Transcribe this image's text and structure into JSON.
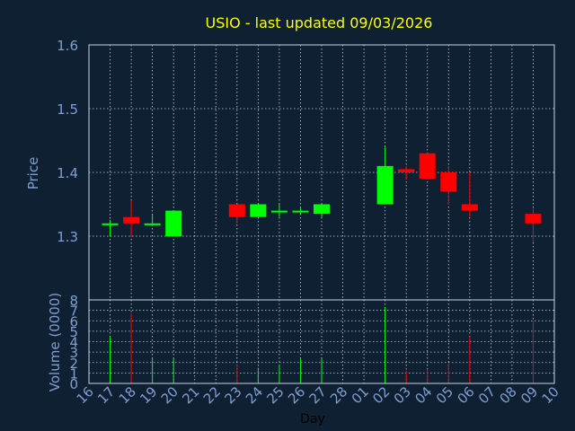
{
  "chart_data": [
    {
      "type": "candlestick",
      "title": "USIO - last updated 09/03/2026",
      "ylabel": "Price",
      "xlabel": "",
      "ylim": [
        1.2,
        1.6
      ],
      "y_ticks": [
        "1.3",
        "1.4",
        "1.5",
        "1.6"
      ],
      "grid": true,
      "candles": [
        {
          "day": "17",
          "open": 1.32,
          "high": 1.325,
          "low": 1.3,
          "close": 1.32
        },
        {
          "day": "18",
          "open": 1.33,
          "high": 1.355,
          "low": 1.3,
          "close": 1.32
        },
        {
          "day": "19",
          "open": 1.32,
          "high": 1.335,
          "low": 1.32,
          "close": 1.32
        },
        {
          "day": "20",
          "open": 1.3,
          "high": 1.34,
          "low": 1.3,
          "close": 1.34
        },
        {
          "day": "23",
          "open": 1.35,
          "high": 1.35,
          "low": 1.32,
          "close": 1.33
        },
        {
          "day": "24",
          "open": 1.33,
          "high": 1.35,
          "low": 1.33,
          "close": 1.35
        },
        {
          "day": "25",
          "open": 1.34,
          "high": 1.35,
          "low": 1.33,
          "close": 1.34
        },
        {
          "day": "26",
          "open": 1.34,
          "high": 1.345,
          "low": 1.335,
          "close": 1.34
        },
        {
          "day": "27",
          "open": 1.335,
          "high": 1.35,
          "low": 1.33,
          "close": 1.35
        },
        {
          "day": "02",
          "open": 1.35,
          "high": 1.44,
          "low": 1.35,
          "close": 1.41
        },
        {
          "day": "03",
          "open": 1.405,
          "high": 1.41,
          "low": 1.39,
          "close": 1.4
        },
        {
          "day": "04",
          "open": 1.43,
          "high": 1.43,
          "low": 1.39,
          "close": 1.39
        },
        {
          "day": "05",
          "open": 1.4,
          "high": 1.41,
          "low": 1.35,
          "close": 1.37
        },
        {
          "day": "06",
          "open": 1.35,
          "high": 1.4,
          "low": 1.33,
          "close": 1.34
        },
        {
          "day": "09",
          "open": 1.335,
          "high": 1.345,
          "low": 1.29,
          "close": 1.32
        }
      ],
      "colors": {
        "up": "#00ff00",
        "down": "#ff0000",
        "title": "#ffff00",
        "axis_text": "#7f9fcf",
        "background": "#0f2033",
        "grid": "#c8d2e0"
      }
    },
    {
      "type": "bar",
      "xlabel": "Day",
      "ylabel": "Volume (0000)",
      "ylim": [
        0,
        8
      ],
      "y_ticks": [
        "0",
        "1",
        "2",
        "3",
        "4",
        "5",
        "6",
        "7",
        "8"
      ],
      "categories": [
        "16",
        "17",
        "18",
        "19",
        "20",
        "21",
        "22",
        "23",
        "24",
        "25",
        "26",
        "27",
        "28",
        "01",
        "02",
        "03",
        "04",
        "05",
        "06",
        "07",
        "08",
        "09",
        "10"
      ],
      "values": [
        0,
        4.5,
        6.7,
        2.4,
        2.4,
        0,
        0,
        1.8,
        1.5,
        1.8,
        2.4,
        2.4,
        0,
        0,
        7.3,
        1.2,
        1.3,
        2.0,
        4.5,
        0,
        0,
        6.0,
        0
      ],
      "bar_direction": [
        "",
        "up",
        "down",
        "up",
        "up",
        "",
        "",
        "down",
        "up",
        "up",
        "up",
        "up",
        "",
        "",
        "up",
        "down",
        "down",
        "down",
        "down",
        "",
        "",
        "down",
        ""
      ]
    }
  ]
}
